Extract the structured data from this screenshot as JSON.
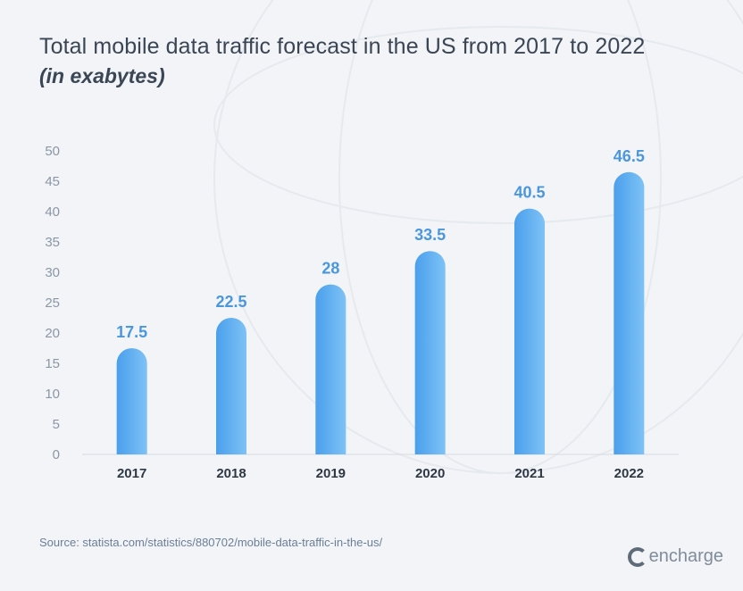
{
  "title": "Total mobile data traffic forecast in the US from 2017 to 2022",
  "subtitle": "(in exabytes)",
  "source": "Source: statista.com/statistics/880702/mobile-data-traffic-in-the-us/",
  "brand": "encharge",
  "colors": {
    "bar_top": "#4a9fec",
    "bar_bottom": "#7ec2f6",
    "value_label": "#4a97dd",
    "axis_label": "#8b97a5",
    "category_label": "#2d3845",
    "background": "#f2f4f7"
  },
  "chart_data": {
    "type": "bar",
    "title": "Total mobile data traffic forecast in the US from 2017 to 2022",
    "subtitle": "(in exabytes)",
    "categories": [
      "2017",
      "2018",
      "2019",
      "2020",
      "2021",
      "2022"
    ],
    "values": [
      17.5,
      22.5,
      28,
      33.5,
      40.5,
      46.5
    ],
    "value_labels": [
      "17.5",
      "22.5",
      "28",
      "33.5",
      "40.5",
      "46.5"
    ],
    "y_ticks": [
      "0",
      "5",
      "10",
      "15",
      "20",
      "25",
      "30",
      "35",
      "40",
      "45",
      "50"
    ],
    "ylim": [
      0,
      50
    ],
    "xlabel": "",
    "ylabel": "",
    "grid": false,
    "legend": "none"
  }
}
